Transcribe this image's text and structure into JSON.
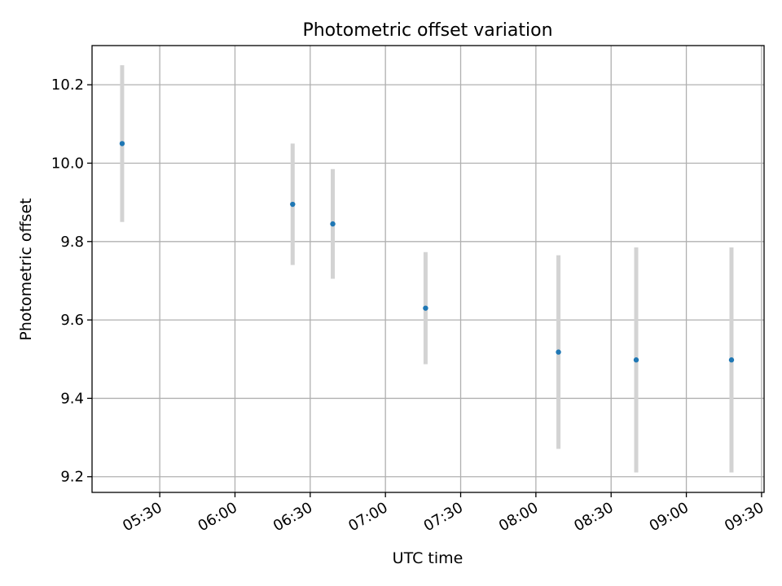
{
  "chart_data": {
    "type": "scatter",
    "title": "Photometric offset variation",
    "xlabel": "UTC time",
    "ylabel": "Photometric offset",
    "x_axis_type": "time",
    "xlim": [
      "05:03",
      "09:31"
    ],
    "ylim": [
      9.16,
      10.3
    ],
    "grid": true,
    "x_ticks": [
      "05:30",
      "06:00",
      "06:30",
      "07:00",
      "07:30",
      "08:00",
      "08:30",
      "09:00",
      "09:30"
    ],
    "y_ticks": [
      9.2,
      9.4,
      9.6,
      9.8,
      10.0,
      10.2
    ],
    "y_tick_labels": [
      "9.2",
      "9.4",
      "9.6",
      "9.8",
      "10.0",
      "10.2"
    ],
    "marker_color": "#1f77b4",
    "errorbar_color": "#d3d3d3",
    "points": [
      {
        "x": "05:15",
        "y": 10.05,
        "yerr": 0.2
      },
      {
        "x": "06:23",
        "y": 9.895,
        "yerr": 0.155
      },
      {
        "x": "06:39",
        "y": 9.845,
        "yerr": 0.14
      },
      {
        "x": "07:16",
        "y": 9.63,
        "yerr": 0.143
      },
      {
        "x": "08:09",
        "y": 9.518,
        "yerr": 0.247
      },
      {
        "x": "08:40",
        "y": 9.498,
        "yerr": 0.287
      },
      {
        "x": "09:18",
        "y": 9.498,
        "yerr": 0.287
      }
    ]
  }
}
